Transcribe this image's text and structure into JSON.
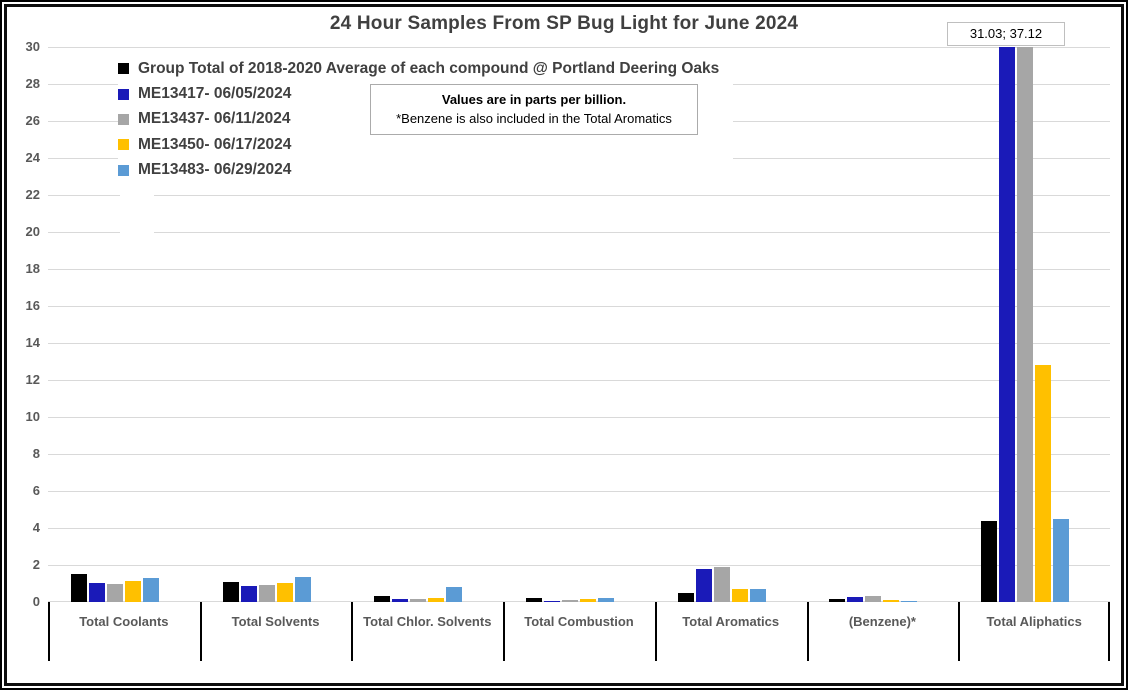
{
  "title": "24 Hour Samples From SP Bug Light for June 2024",
  "note_box": {
    "line1": "Values are in parts per billion.",
    "line2": "*Benzene is also included in the Total Aromatics"
  },
  "offscale_label": "31.03; 37.12",
  "colors": {
    "title_text": "#404040",
    "axis_text": "#595959",
    "gridline": "#d9d9d9",
    "series_black": "#000000",
    "series_dark_blue": "#1a1ab8",
    "series_gray": "#a6a6a6",
    "series_gold": "#ffc000",
    "series_light_blue": "#5b9bd5"
  },
  "chart_data": {
    "type": "bar",
    "title": "24 Hour Samples From SP Bug Light for June 2024",
    "ylabel": "",
    "xlabel": "",
    "ylim": [
      0,
      30
    ],
    "ytick_step": 2,
    "grid": true,
    "legend_position": "inside-top-left",
    "units_note": "Values are in parts per billion.",
    "offscale_values_note": "31.03; 37.12",
    "categories": [
      "Total Coolants",
      "Total Solvents",
      "Total Chlor. Solvents",
      "Total Combustion",
      "Total Aromatics",
      "(Benzene)*",
      "Total Aliphatics"
    ],
    "series": [
      {
        "name": "Group Total of 2018-2020 Average of each compound @ Portland Deering Oaks",
        "color": "#000000",
        "values": [
          1.5,
          1.1,
          0.3,
          0.2,
          0.5,
          0.15,
          4.4
        ]
      },
      {
        "name": "ME13417- 06/05/2024",
        "color": "#1a1ab8",
        "values": [
          1.05,
          0.85,
          0.15,
          0.08,
          1.8,
          0.25,
          31.03
        ]
      },
      {
        "name": "ME13437- 06/11/2024",
        "color": "#a6a6a6",
        "values": [
          0.95,
          0.9,
          0.15,
          0.1,
          1.9,
          0.3,
          37.12
        ]
      },
      {
        "name": "ME13450- 06/17/2024",
        "color": "#ffc000",
        "values": [
          1.15,
          1.05,
          0.2,
          0.18,
          0.7,
          0.1,
          12.8
        ]
      },
      {
        "name": "ME13483- 06/29/2024",
        "color": "#5b9bd5",
        "values": [
          1.3,
          1.35,
          0.8,
          0.2,
          0.72,
          0.05,
          4.5
        ]
      }
    ]
  }
}
